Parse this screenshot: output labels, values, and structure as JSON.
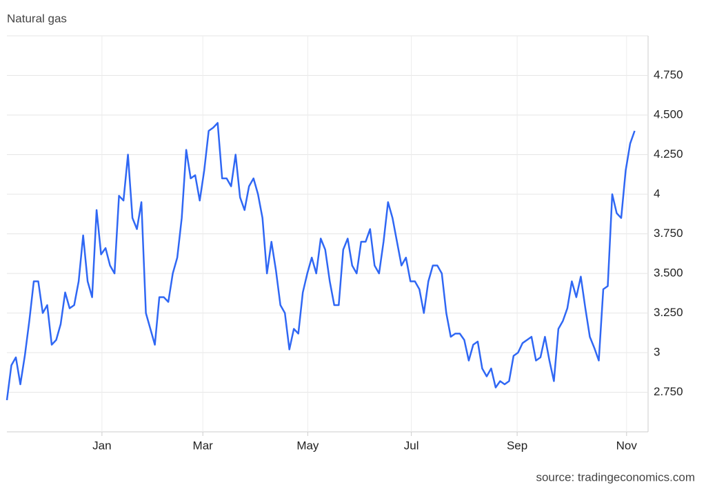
{
  "chart_data": {
    "type": "line",
    "title": "Natural gas",
    "source": "source: tradingeconomics.com",
    "series": [
      {
        "color": "#2f67f4",
        "values": [
          2.7,
          2.92,
          2.97,
          2.8,
          2.98,
          3.2,
          3.45,
          3.45,
          3.25,
          3.3,
          3.05,
          3.08,
          3.18,
          3.38,
          3.28,
          3.3,
          3.45,
          3.74,
          3.45,
          3.35,
          3.9,
          3.62,
          3.66,
          3.55,
          3.5,
          3.99,
          3.96,
          4.25,
          3.85,
          3.78,
          3.95,
          3.25,
          3.15,
          3.05,
          3.35,
          3.35,
          3.32,
          3.5,
          3.6,
          3.85,
          4.28,
          4.1,
          4.12,
          3.96,
          4.15,
          4.4,
          4.42,
          4.45,
          4.1,
          4.1,
          4.05,
          4.25,
          3.98,
          3.9,
          4.05,
          4.1,
          4.0,
          3.85,
          3.5,
          3.7,
          3.52,
          3.3,
          3.25,
          3.02,
          3.15,
          3.12,
          3.38,
          3.5,
          3.6,
          3.5,
          3.72,
          3.65,
          3.45,
          3.3,
          3.3,
          3.65,
          3.72,
          3.55,
          3.5,
          3.7,
          3.7,
          3.78,
          3.55,
          3.5,
          3.7,
          3.95,
          3.85,
          3.7,
          3.55,
          3.6,
          3.45,
          3.45,
          3.4,
          3.25,
          3.45,
          3.55,
          3.55,
          3.5,
          3.25,
          3.1,
          3.12,
          3.12,
          3.08,
          2.95,
          3.05,
          3.07,
          2.9,
          2.85,
          2.9,
          2.78,
          2.82,
          2.8,
          2.82,
          2.98,
          3.0,
          3.06,
          3.08,
          3.1,
          2.95,
          2.97,
          3.1,
          2.95,
          2.82,
          3.15,
          3.2,
          3.28,
          3.45,
          3.35,
          3.48,
          3.28,
          3.1,
          3.03,
          2.95,
          3.4,
          3.42,
          4.0,
          3.88,
          3.85,
          4.15,
          4.32,
          4.4
        ]
      }
    ],
    "xlim": [
      0,
      143
    ],
    "xticks": [
      {
        "value": 21.2,
        "label": "Jan"
      },
      {
        "value": 43.7,
        "label": "Mar"
      },
      {
        "value": 67.1,
        "label": "May"
      },
      {
        "value": 90.2,
        "label": "Jul"
      },
      {
        "value": 113.8,
        "label": "Sep"
      },
      {
        "value": 138.2,
        "label": "Nov"
      }
    ],
    "ylim": [
      2.5,
      5.0
    ],
    "yticks": [
      {
        "value": 2.75,
        "label": "2.750"
      },
      3,
      {
        "value": 3.25,
        "label": "3.250"
      },
      {
        "value": 3.5,
        "label": "3.500"
      },
      {
        "value": 3.75,
        "label": "3.750"
      },
      4,
      {
        "value": 4.25,
        "label": "4.250"
      },
      {
        "value": 4.5,
        "label": "4.500"
      },
      {
        "value": 4.75,
        "label": "4.750"
      }
    ],
    "grid": true
  }
}
